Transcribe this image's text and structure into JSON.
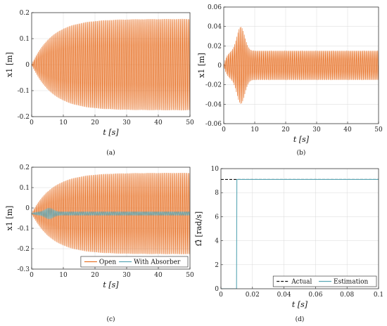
{
  "chart_data": [
    {
      "panel": "a",
      "type": "line",
      "caption": "(a)",
      "xlabel": "t [s]",
      "ylabel": "x1 [m]",
      "xlim": [
        0,
        50
      ],
      "ylim": [
        -0.25,
        0.25
      ],
      "xticks": [
        "0",
        "10",
        "20",
        "30",
        "40",
        "50"
      ],
      "yticks": [
        "-0.2",
        "-0.1",
        "0",
        "0.1",
        "0.2"
      ],
      "grid": true,
      "legend": "none",
      "series": [
        {
          "color": "#e8742a",
          "amplitude_max": 0.22,
          "time_constant": 6.5,
          "cycles": 145,
          "shape": "growing"
        }
      ]
    },
    {
      "panel": "b",
      "type": "line",
      "caption": "(b)",
      "xlabel": "t [s]",
      "ylabel": "x1 [m]",
      "xlim": [
        0,
        50
      ],
      "ylim": [
        -0.06,
        0.06
      ],
      "xticks": [
        "0",
        "10",
        "20",
        "30",
        "40",
        "50"
      ],
      "yticks": [
        "-0.06",
        "-0.04",
        "-0.02",
        "0",
        "0.02",
        "0.04",
        "0.06"
      ],
      "grid": true,
      "legend": "none",
      "series": [
        {
          "color": "#e8742a",
          "steady_amplitude": 0.015,
          "peak_amplitude": 0.04,
          "peak_time": 5.5,
          "cycles": 145,
          "shape": "transient"
        }
      ]
    },
    {
      "panel": "c",
      "type": "line",
      "caption": "(c)",
      "xlabel": "t [s]",
      "ylabel": "x1 [m]",
      "xlim": [
        0,
        50
      ],
      "ylim": [
        -0.3,
        0.25
      ],
      "xticks": [
        "0",
        "10",
        "20",
        "30",
        "40",
        "50"
      ],
      "yticks": [
        "-0.3",
        "-0.2",
        "-0.1",
        "0",
        "0.1",
        "0.2"
      ],
      "grid": true,
      "legend": "bottom-right",
      "series": [
        {
          "name": "Open",
          "color": "#e8742a",
          "amplitude_max": 0.22,
          "time_constant": 6.5,
          "cycles": 145,
          "shape": "growing"
        },
        {
          "name": "With Absorber",
          "color": "#5aa7b5",
          "steady_amplitude": 0.01,
          "peak_amplitude": 0.03,
          "peak_time": 5.5,
          "cycles": 145,
          "shape": "transient"
        }
      ]
    },
    {
      "panel": "d",
      "type": "line",
      "caption": "(d)",
      "xlabel": "t [s]",
      "ylabel": "Ω̂ [rad/s]",
      "xlim": [
        0,
        0.1
      ],
      "ylim": [
        0,
        10
      ],
      "xticks": [
        "0",
        "0.02",
        "0.04",
        "0.06",
        "0.08",
        "0.1"
      ],
      "yticks": [
        "0",
        "2",
        "4",
        "6",
        "8",
        "10"
      ],
      "grid": true,
      "legend": "bottom-right",
      "series": [
        {
          "name": "Actual",
          "color": "#111111",
          "dash": true,
          "x": [
            0,
            0.1
          ],
          "y": [
            9.1,
            9.1
          ]
        },
        {
          "name": "Estimation",
          "color": "#5aa7b5",
          "x": [
            0,
            0.0099,
            0.0101,
            0.1
          ],
          "y": [
            0,
            0,
            9.1,
            9.1
          ]
        }
      ]
    }
  ]
}
